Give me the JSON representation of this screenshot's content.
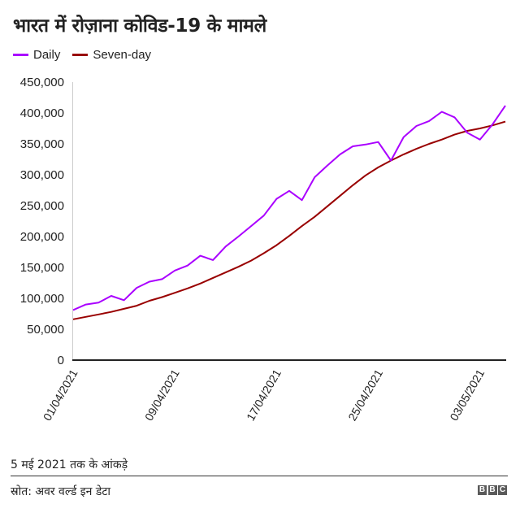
{
  "header": {
    "title": "भारत में रोज़ाना कोविड-19 के मामले"
  },
  "legend": [
    {
      "label": "Daily",
      "color": "#aa00ff"
    },
    {
      "label": "Seven-day",
      "color": "#990000"
    }
  ],
  "footer": {
    "note": "5 मई 2021 तक के आंकड़े",
    "source": "स्रोत: अवर वर्ल्ड इन डेटा",
    "logo": [
      "B",
      "B",
      "C"
    ]
  },
  "chart_data": {
    "type": "line",
    "title": "भारत में रोज़ाना कोविड-19 के मामले",
    "xlabel": "",
    "ylabel": "",
    "ylim": [
      0,
      450000
    ],
    "yticks": [
      0,
      50000,
      100000,
      150000,
      200000,
      250000,
      300000,
      350000,
      400000,
      450000
    ],
    "ytick_labels": [
      "0",
      "50,000",
      "100,000",
      "150,000",
      "200,000",
      "250,000",
      "300,000",
      "350,000",
      "400,000",
      "450,000"
    ],
    "xtick_labels": [
      "01/04/2021",
      "09/04/2021",
      "17/04/2021",
      "25/04/2021",
      "03/05/2021"
    ],
    "xtick_indices": [
      0,
      8,
      16,
      24,
      32
    ],
    "x": [
      "01/04/2021",
      "02/04/2021",
      "03/04/2021",
      "04/04/2021",
      "05/04/2021",
      "06/04/2021",
      "07/04/2021",
      "08/04/2021",
      "09/04/2021",
      "10/04/2021",
      "11/04/2021",
      "12/04/2021",
      "13/04/2021",
      "14/04/2021",
      "15/04/2021",
      "16/04/2021",
      "17/04/2021",
      "18/04/2021",
      "19/04/2021",
      "20/04/2021",
      "21/04/2021",
      "22/04/2021",
      "23/04/2021",
      "24/04/2021",
      "25/04/2021",
      "26/04/2021",
      "27/04/2021",
      "28/04/2021",
      "29/04/2021",
      "30/04/2021",
      "01/05/2021",
      "02/05/2021",
      "03/05/2021",
      "04/05/2021",
      "05/05/2021"
    ],
    "series": [
      {
        "name": "Daily",
        "color": "#aa00ff",
        "values": [
          81000,
          90000,
          93000,
          104000,
          97000,
          117000,
          127000,
          131000,
          145000,
          153000,
          169000,
          162000,
          184000,
          200000,
          217000,
          234000,
          261000,
          274000,
          259000,
          296000,
          315000,
          333000,
          346000,
          349000,
          353000,
          323000,
          361000,
          379000,
          387000,
          402000,
          393000,
          368000,
          357000,
          382000,
          412000
        ]
      },
      {
        "name": "Seven-day",
        "color": "#990000",
        "values": [
          66000,
          70000,
          74000,
          78000,
          83000,
          88000,
          96000,
          102000,
          109000,
          116000,
          124000,
          133000,
          142000,
          151000,
          161000,
          173000,
          186000,
          201000,
          217000,
          232000,
          249000,
          266000,
          283000,
          299000,
          312000,
          323000,
          333000,
          342000,
          350000,
          357000,
          365000,
          371000,
          375000,
          380000,
          386000
        ]
      }
    ],
    "grid": false,
    "legend_position": "top-left"
  }
}
